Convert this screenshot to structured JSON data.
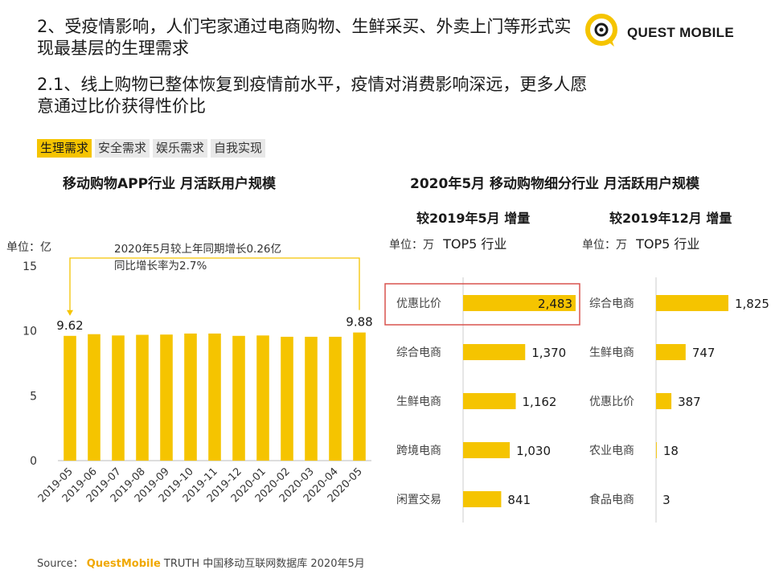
{
  "heading": {
    "line1": "2、受疫情影响，人们宅家通过电商购物、生鲜采买、外卖上门等形式实现最基层的生理需求",
    "line2": "2.1、线上购物已整体恢复到疫情前水平，疫情对消费影响深远，更多人愿意通过比价获得性价比"
  },
  "logo": {
    "text": "QUEST MOBILE"
  },
  "tabs": [
    {
      "label": "生理需求",
      "active": true
    },
    {
      "label": "安全需求",
      "active": false
    },
    {
      "label": "娱乐需求",
      "active": false
    },
    {
      "label": "自我实现",
      "active": false
    }
  ],
  "left_chart": {
    "title": "移动购物APP行业 月活跃用户规模",
    "unit": "单位：亿",
    "annotation_line1": "2020年5月较上年同期增长0.26亿",
    "annotation_line2": "同比增长率为2.7%"
  },
  "right_panel": {
    "title": "2020年5月 移动购物细分行业 月活跃用户规模",
    "left_sub": "较2019年5月 增量",
    "right_sub": "较2019年12月 增量",
    "unit_prefix": "单位：万",
    "top5": "TOP5 行业"
  },
  "source": {
    "prefix": "Source：",
    "brand": "QuestMobile",
    "rest": "TRUTH 中国移动互联网数据库 2020年5月"
  },
  "colors": {
    "bar": "#f5c400",
    "highlight_box": "#d9534f",
    "annotation_line": "#f5c400"
  },
  "chart_data": [
    {
      "type": "bar",
      "title": "移动购物APP行业 月活跃用户规模",
      "ylabel": "单位：亿",
      "categories": [
        "2019-05",
        "2019-06",
        "2019-07",
        "2019-08",
        "2019-09",
        "2019-10",
        "2019-11",
        "2019-12",
        "2020-01",
        "2020-02",
        "2020-03",
        "2020-04",
        "2020-05"
      ],
      "values": [
        9.62,
        9.75,
        9.65,
        9.7,
        9.72,
        9.8,
        9.8,
        9.62,
        9.65,
        9.55,
        9.55,
        9.55,
        9.88
      ],
      "value_labels": {
        "2019-05": "9.62",
        "2020-05": "9.88"
      },
      "ylim": [
        0,
        15
      ],
      "yticks": [
        0,
        5,
        10,
        15
      ]
    },
    {
      "type": "bar",
      "orientation": "horizontal",
      "title": "较2019年5月 增量",
      "unit": "万",
      "categories": [
        "优惠比价",
        "综合电商",
        "生鲜电商",
        "跨境电商",
        "闲置交易"
      ],
      "values": [
        2483,
        1370,
        1162,
        1030,
        841
      ],
      "value_labels": [
        "2,483",
        "1,370",
        "1,162",
        "1,030",
        "841"
      ],
      "highlight": "优惠比价"
    },
    {
      "type": "bar",
      "orientation": "horizontal",
      "title": "较2019年12月 增量",
      "unit": "万",
      "categories": [
        "综合电商",
        "生鲜电商",
        "优惠比价",
        "农业电商",
        "食品电商"
      ],
      "values": [
        1825,
        747,
        387,
        18,
        3
      ],
      "value_labels": [
        "1,825",
        "747",
        "387",
        "18",
        "3"
      ]
    }
  ]
}
